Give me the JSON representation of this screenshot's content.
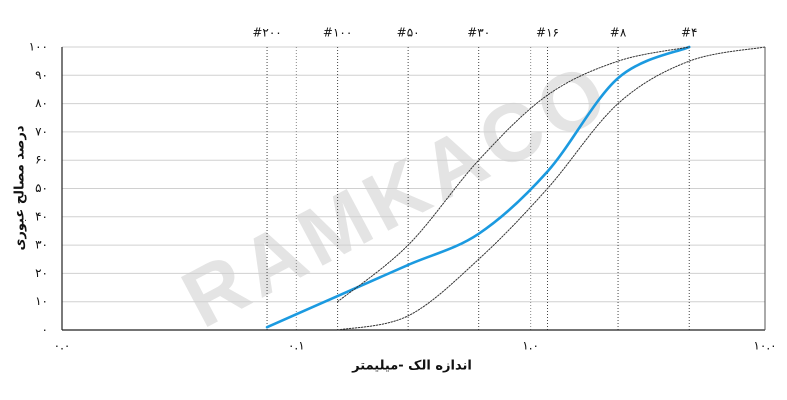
{
  "chart_data": {
    "type": "line",
    "watermark": "RAMKACO",
    "xlabel": "اندازه الک -میلیمتر",
    "ylabel": "درصد مصالح عبوری",
    "xscale": "log",
    "xlim": [
      0.01,
      10
    ],
    "xticks": [
      {
        "value": 0.01,
        "label": "۰.۰"
      },
      {
        "value": 0.1,
        "label": "۰.۱"
      },
      {
        "value": 1,
        "label": "۱.۰"
      },
      {
        "value": 10,
        "label": "۱۰.۰"
      }
    ],
    "ylim": [
      0,
      100
    ],
    "yticks": [
      {
        "value": 0,
        "label": "۰"
      },
      {
        "value": 10,
        "label": "۱۰"
      },
      {
        "value": 20,
        "label": "۲۰"
      },
      {
        "value": 30,
        "label": "۳۰"
      },
      {
        "value": 40,
        "label": "۴۰"
      },
      {
        "value": 50,
        "label": "۵۰"
      },
      {
        "value": 60,
        "label": "۶۰"
      },
      {
        "value": 70,
        "label": "۷۰"
      },
      {
        "value": 80,
        "label": "۸۰"
      },
      {
        "value": 90,
        "label": "۹۰"
      },
      {
        "value": 100,
        "label": "۱۰۰"
      }
    ],
    "sieves": [
      {
        "value": 0.075,
        "label": "#۲۰۰"
      },
      {
        "value": 0.15,
        "label": "#۱۰۰"
      },
      {
        "value": 0.3,
        "label": "#۵۰"
      },
      {
        "value": 0.6,
        "label": "#۳۰"
      },
      {
        "value": 1.18,
        "label": "#۱۶"
      },
      {
        "value": 2.36,
        "label": "#۸"
      },
      {
        "value": 4.75,
        "label": "#۴"
      }
    ],
    "grid": true,
    "series": [
      {
        "color": "#1b9ae0",
        "dashed": false,
        "x": [
          0.075,
          0.15,
          0.3,
          0.6,
          1.18,
          2.36,
          4.75
        ],
        "values": [
          1,
          12,
          23,
          34,
          56,
          89,
          100
        ]
      },
      {
        "color": "#333333",
        "dashed": true,
        "x": [
          0.15,
          0.3,
          0.6,
          1.18,
          2.36,
          4.75
        ],
        "values": [
          10,
          30,
          60,
          83,
          95,
          100
        ]
      },
      {
        "color": "#333333",
        "dashed": true,
        "x": [
          0.15,
          0.3,
          0.6,
          1.18,
          2.36,
          4.75,
          10
        ],
        "values": [
          0,
          5,
          25,
          50,
          80,
          95,
          100
        ]
      }
    ]
  }
}
